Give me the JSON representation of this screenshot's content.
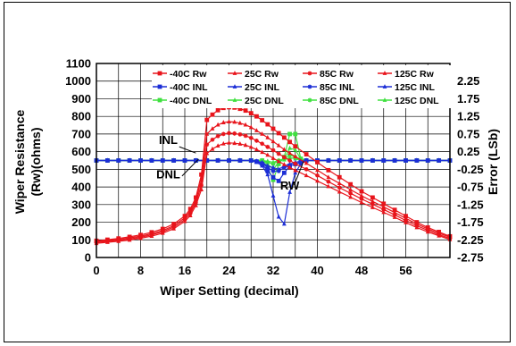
{
  "chart_data": {
    "type": "line",
    "title": "",
    "xlabel": "Wiper Setting (decimal)",
    "ylabel_left_line1": "Wiper Resistance",
    "ylabel_left_line2": "(Rw)(ohms)",
    "ylabel_right": "Error (LSb)",
    "xlim": [
      0,
      64
    ],
    "ylim_left": [
      0,
      1100
    ],
    "ylim_right": [
      -2.75,
      2.75
    ],
    "x_ticks": [
      0,
      8,
      16,
      24,
      32,
      40,
      48,
      56
    ],
    "y_left_ticks": [
      0,
      100,
      200,
      300,
      400,
      500,
      600,
      700,
      800,
      900,
      1000,
      1100
    ],
    "y_right_ticks": [
      2.25,
      1.75,
      1.25,
      0.75,
      0.25,
      -0.25,
      -0.75,
      -1.25,
      -1.75,
      -2.25,
      -2.75
    ],
    "grid": true,
    "legend_position": "top",
    "annotations": [
      {
        "text": "INL",
        "x": 13,
        "y": 645
      },
      {
        "text": "DNL",
        "x": 13,
        "y": 448
      },
      {
        "text": "RW",
        "x": 35,
        "y": 385
      }
    ],
    "colors": {
      "rw": "#e8141b",
      "inl": "#1c2ed6",
      "dnl": "#3fe03f"
    },
    "series": [
      {
        "name": "-40C Rw",
        "axis": "left",
        "group": "rw",
        "x": [
          0,
          2,
          4,
          6,
          8,
          10,
          12,
          14,
          16,
          17,
          18,
          19,
          20,
          21,
          22,
          23,
          24,
          25,
          26,
          27,
          28,
          29,
          30,
          31,
          32,
          33,
          34,
          35,
          36,
          38,
          40,
          42,
          44,
          46,
          48,
          50,
          52,
          54,
          56,
          58,
          60,
          62,
          64
        ],
        "y": [
          95,
          101,
          108,
          117,
          128,
          143,
          162,
          190,
          235,
          275,
          340,
          470,
          780,
          810,
          835,
          848,
          852,
          850,
          843,
          833,
          818,
          800,
          778,
          755,
          730,
          705,
          680,
          655,
          630,
          585,
          540,
          495,
          455,
          415,
          375,
          340,
          305,
          270,
          235,
          200,
          170,
          145,
          120
        ]
      },
      {
        "name": "25C Rw",
        "axis": "left",
        "group": "rw",
        "x": [
          0,
          2,
          4,
          6,
          8,
          10,
          12,
          14,
          16,
          17,
          18,
          19,
          20,
          21,
          22,
          23,
          24,
          25,
          26,
          27,
          28,
          29,
          30,
          31,
          32,
          33,
          34,
          35,
          36,
          38,
          40,
          42,
          44,
          46,
          48,
          50,
          52,
          54,
          56,
          58,
          60,
          62,
          64
        ],
        "y": [
          90,
          96,
          103,
          111,
          121,
          135,
          153,
          180,
          225,
          262,
          325,
          440,
          700,
          730,
          752,
          765,
          770,
          768,
          762,
          752,
          738,
          720,
          700,
          680,
          658,
          635,
          612,
          592,
          572,
          535,
          495,
          455,
          420,
          385,
          350,
          318,
          287,
          255,
          222,
          190,
          162,
          138,
          115
        ]
      },
      {
        "name": "85C Rw",
        "axis": "left",
        "group": "rw",
        "x": [
          0,
          2,
          4,
          6,
          8,
          10,
          12,
          14,
          16,
          17,
          18,
          19,
          20,
          21,
          22,
          23,
          24,
          25,
          26,
          27,
          28,
          29,
          30,
          31,
          32,
          33,
          34,
          35,
          36,
          38,
          40,
          42,
          44,
          46,
          48,
          50,
          52,
          54,
          56,
          58,
          60,
          62,
          64
        ],
        "y": [
          85,
          91,
          97,
          105,
          115,
          128,
          146,
          172,
          215,
          250,
          310,
          410,
          640,
          668,
          688,
          700,
          705,
          703,
          698,
          690,
          678,
          662,
          645,
          627,
          608,
          588,
          568,
          550,
          532,
          500,
          465,
          430,
          396,
          364,
          332,
          302,
          272,
          242,
          210,
          180,
          154,
          130,
          108
        ]
      },
      {
        "name": "125C Rw",
        "axis": "left",
        "group": "rw",
        "x": [
          0,
          2,
          4,
          6,
          8,
          10,
          12,
          14,
          16,
          17,
          18,
          19,
          20,
          21,
          22,
          23,
          24,
          25,
          26,
          27,
          28,
          29,
          30,
          31,
          32,
          33,
          34,
          35,
          36,
          38,
          40,
          42,
          44,
          46,
          48,
          50,
          52,
          54,
          56,
          58,
          60,
          62,
          64
        ],
        "y": [
          80,
          86,
          92,
          99,
          109,
          121,
          138,
          163,
          205,
          238,
          295,
          385,
          590,
          615,
          633,
          645,
          650,
          648,
          644,
          637,
          626,
          612,
          597,
          581,
          563,
          545,
          527,
          510,
          494,
          465,
          434,
          403,
          372,
          342,
          312,
          284,
          256,
          228,
          198,
          170,
          145,
          123,
          102
        ]
      },
      {
        "name": "-40C INL",
        "axis": "right",
        "group": "inl",
        "x": [
          0,
          2,
          4,
          6,
          8,
          10,
          12,
          14,
          16,
          18,
          20,
          22,
          24,
          26,
          28,
          29,
          30,
          31,
          32,
          33,
          34,
          35,
          36,
          37,
          38,
          40,
          42,
          44,
          46,
          48,
          50,
          52,
          54,
          56,
          58,
          60,
          62,
          64
        ],
        "y": [
          0,
          0,
          0,
          0,
          0,
          0,
          0,
          0,
          0,
          0,
          0,
          0,
          0,
          0,
          0,
          -0.03,
          -0.1,
          -0.3,
          -0.48,
          -0.58,
          -0.35,
          -0.15,
          -0.1,
          -0.05,
          0,
          0,
          0,
          0,
          0,
          0,
          0,
          0,
          0,
          0,
          0,
          0,
          0,
          0
        ]
      },
      {
        "name": "25C INL",
        "axis": "right",
        "group": "inl",
        "x": [
          0,
          2,
          4,
          6,
          8,
          10,
          12,
          14,
          16,
          18,
          20,
          22,
          24,
          26,
          28,
          29,
          30,
          31,
          32,
          33,
          34,
          35,
          36,
          37,
          38,
          40,
          42,
          44,
          46,
          48,
          50,
          52,
          54,
          56,
          58,
          60,
          62,
          64
        ],
        "y": [
          0,
          0,
          0,
          0,
          0,
          0,
          0,
          0,
          0,
          0,
          0,
          0,
          0,
          0,
          0,
          -0.05,
          -0.15,
          -0.4,
          -1.0,
          -1.6,
          -1.8,
          -0.9,
          -0.35,
          -0.1,
          0,
          0,
          0,
          0,
          0,
          0,
          0,
          0,
          0,
          0,
          0,
          0,
          0,
          0
        ]
      },
      {
        "name": "85C INL",
        "axis": "right",
        "group": "inl",
        "x": [
          0,
          2,
          4,
          6,
          8,
          10,
          12,
          14,
          16,
          18,
          20,
          22,
          24,
          26,
          28,
          29,
          30,
          31,
          32,
          33,
          34,
          35,
          36,
          37,
          38,
          40,
          42,
          44,
          46,
          48,
          50,
          52,
          54,
          56,
          58,
          60,
          62,
          64
        ],
        "y": [
          0,
          0,
          0,
          0,
          0,
          0,
          0,
          0,
          0,
          0,
          0,
          0,
          0,
          0,
          0,
          -0.02,
          -0.08,
          -0.2,
          -0.3,
          -0.3,
          -0.2,
          -0.15,
          -0.1,
          -0.05,
          0,
          0,
          0,
          0,
          0,
          0,
          0,
          0,
          0,
          0,
          0,
          0,
          0,
          0
        ]
      },
      {
        "name": "125C INL",
        "axis": "right",
        "group": "inl",
        "x": [
          0,
          2,
          4,
          6,
          8,
          10,
          12,
          14,
          16,
          18,
          20,
          22,
          24,
          26,
          28,
          29,
          30,
          31,
          32,
          33,
          34,
          35,
          36,
          37,
          38,
          40,
          42,
          44,
          46,
          48,
          50,
          52,
          54,
          56,
          58,
          60,
          62,
          64
        ],
        "y": [
          0,
          0,
          0,
          0,
          0,
          0,
          0,
          0,
          0,
          0,
          0,
          0,
          0,
          0,
          0,
          -0.02,
          -0.05,
          -0.15,
          -0.2,
          -0.25,
          -0.15,
          -0.1,
          -0.05,
          -0.02,
          0,
          0,
          0,
          0,
          0,
          0,
          0,
          0,
          0,
          0,
          0,
          0,
          0,
          0
        ]
      },
      {
        "name": "-40C DNL",
        "axis": "right",
        "group": "dnl",
        "x": [
          0,
          2,
          4,
          6,
          8,
          10,
          12,
          14,
          16,
          18,
          20,
          22,
          24,
          26,
          28,
          30,
          31,
          32,
          33,
          34,
          35,
          36,
          37,
          38,
          40,
          42,
          44,
          46,
          48,
          50,
          52,
          54,
          56,
          58,
          60,
          62,
          64
        ],
        "y": [
          0,
          0,
          0,
          0,
          0,
          0,
          0,
          0,
          0,
          0,
          0,
          0,
          0,
          0,
          0,
          0,
          -0.2,
          -0.55,
          -0.1,
          0.1,
          0.75,
          0.75,
          0.05,
          0,
          0,
          0,
          0,
          0,
          0,
          0,
          0,
          0,
          0,
          0,
          0,
          0,
          0
        ]
      },
      {
        "name": "25C DNL",
        "axis": "right",
        "group": "dnl",
        "x": [
          0,
          2,
          4,
          6,
          8,
          10,
          12,
          14,
          16,
          18,
          20,
          22,
          24,
          26,
          28,
          30,
          31,
          32,
          33,
          34,
          35,
          36,
          37,
          38,
          40,
          42,
          44,
          46,
          48,
          50,
          52,
          54,
          56,
          58,
          60,
          62,
          64
        ],
        "y": [
          0,
          0,
          0,
          0,
          0,
          0,
          0,
          0,
          0,
          0,
          0,
          0,
          0,
          0,
          0,
          0,
          -0.1,
          -0.25,
          -0.05,
          0.05,
          0.35,
          0.3,
          0.05,
          0,
          0,
          0,
          0,
          0,
          0,
          0,
          0,
          0,
          0,
          0,
          0,
          0,
          0
        ]
      },
      {
        "name": "85C DNL",
        "axis": "right",
        "group": "dnl",
        "x": [
          0,
          2,
          4,
          6,
          8,
          10,
          12,
          14,
          16,
          18,
          20,
          22,
          24,
          26,
          28,
          30,
          31,
          32,
          33,
          34,
          35,
          36,
          37,
          38,
          40,
          42,
          44,
          46,
          48,
          50,
          52,
          54,
          56,
          58,
          60,
          62,
          64
        ],
        "y": [
          0,
          0,
          0,
          0,
          0,
          0,
          0,
          0,
          0,
          0,
          0,
          0,
          0,
          0,
          0,
          0,
          -0.05,
          -0.1,
          0,
          0.05,
          0.15,
          0.1,
          0,
          0,
          0,
          0,
          0,
          0,
          0,
          0,
          0,
          0,
          0,
          0,
          0,
          0,
          0
        ]
      },
      {
        "name": "125C DNL",
        "axis": "right",
        "group": "dnl",
        "x": [
          0,
          2,
          4,
          6,
          8,
          10,
          12,
          14,
          16,
          18,
          20,
          22,
          24,
          26,
          28,
          30,
          31,
          32,
          33,
          34,
          35,
          36,
          37,
          38,
          40,
          42,
          44,
          46,
          48,
          50,
          52,
          54,
          56,
          58,
          60,
          62,
          64
        ],
        "y": [
          0,
          0,
          0,
          0,
          0,
          0,
          0,
          0,
          0,
          0,
          0,
          0,
          0,
          0,
          0,
          0,
          -0.02,
          -0.05,
          0,
          0.02,
          0.08,
          0.05,
          0,
          0,
          0,
          0,
          0,
          0,
          0,
          0,
          0,
          0,
          0,
          0,
          0,
          0,
          0
        ]
      }
    ]
  }
}
